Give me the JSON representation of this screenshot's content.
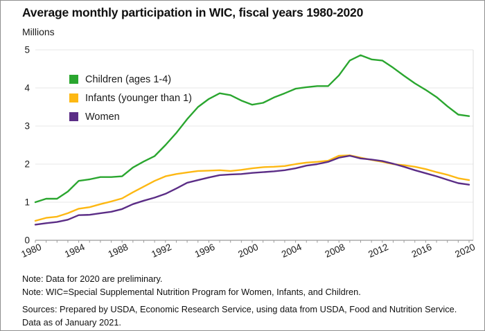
{
  "figure": {
    "title": "Average monthly participation in WIC, fiscal years 1980-2020",
    "unit_label": "Millions",
    "notes": [
      "Note: Data for 2020 are preliminary.",
      "Note: WIC=Special Supplemental Nutrition Program for Women, Infants, and Children."
    ],
    "sources": [
      "Sources: Prepared by USDA, Economic Research Service, using data from USDA, Food and Nutrition Service.",
      "Data as of January 2021."
    ]
  },
  "chart_data": {
    "type": "line",
    "title": "Average monthly participation in WIC, fiscal years 1980-2020",
    "xlabel": "",
    "ylabel": "Millions",
    "ylim": [
      0,
      5
    ],
    "yticks": [
      0,
      1,
      2,
      3,
      4,
      5
    ],
    "xticks": [
      1980,
      1984,
      1988,
      1992,
      1996,
      2000,
      2004,
      2008,
      2012,
      2016,
      2020
    ],
    "grid": "horizontal",
    "legend_position": "inside-top-left",
    "x": [
      1980,
      1981,
      1982,
      1983,
      1984,
      1985,
      1986,
      1987,
      1988,
      1989,
      1990,
      1991,
      1992,
      1993,
      1994,
      1995,
      1996,
      1997,
      1998,
      1999,
      2000,
      2001,
      2002,
      2003,
      2004,
      2005,
      2006,
      2007,
      2008,
      2009,
      2010,
      2011,
      2012,
      2013,
      2014,
      2015,
      2016,
      2017,
      2018,
      2019,
      2020
    ],
    "series": [
      {
        "name": "Children (ages 1-4)",
        "color": "#2aa62f",
        "values": [
          1.0,
          1.09,
          1.09,
          1.28,
          1.56,
          1.6,
          1.66,
          1.66,
          1.68,
          1.91,
          2.07,
          2.21,
          2.5,
          2.82,
          3.18,
          3.5,
          3.71,
          3.86,
          3.81,
          3.67,
          3.56,
          3.61,
          3.75,
          3.86,
          3.98,
          4.02,
          4.05,
          4.05,
          4.33,
          4.72,
          4.86,
          4.75,
          4.72,
          4.53,
          4.32,
          4.12,
          3.95,
          3.76,
          3.52,
          3.3,
          3.26
        ]
      },
      {
        "name": "Infants (younger than 1)",
        "color": "#fdb813",
        "values": [
          0.51,
          0.59,
          0.62,
          0.71,
          0.83,
          0.87,
          0.95,
          1.02,
          1.1,
          1.26,
          1.41,
          1.56,
          1.68,
          1.74,
          1.78,
          1.82,
          1.83,
          1.84,
          1.82,
          1.85,
          1.89,
          1.92,
          1.93,
          1.95,
          2.0,
          2.04,
          2.06,
          2.09,
          2.22,
          2.23,
          2.17,
          2.11,
          2.06,
          2.0,
          1.97,
          1.93,
          1.87,
          1.79,
          1.72,
          1.63,
          1.58
        ]
      },
      {
        "name": "Women",
        "color": "#5b2d86",
        "values": [
          0.41,
          0.45,
          0.48,
          0.54,
          0.66,
          0.67,
          0.71,
          0.75,
          0.82,
          0.95,
          1.04,
          1.12,
          1.22,
          1.36,
          1.51,
          1.58,
          1.65,
          1.71,
          1.73,
          1.74,
          1.77,
          1.79,
          1.81,
          1.84,
          1.89,
          1.96,
          2.0,
          2.06,
          2.17,
          2.22,
          2.15,
          2.12,
          2.08,
          2.01,
          1.93,
          1.84,
          1.76,
          1.68,
          1.59,
          1.5,
          1.46
        ]
      }
    ],
    "colors": {
      "gridline": "#e7e7e7",
      "axis_line": "#9a9a9a",
      "plot_border": "#dcdcdc",
      "tick": "#9a9a9a",
      "text": "#1a1a1a"
    }
  }
}
